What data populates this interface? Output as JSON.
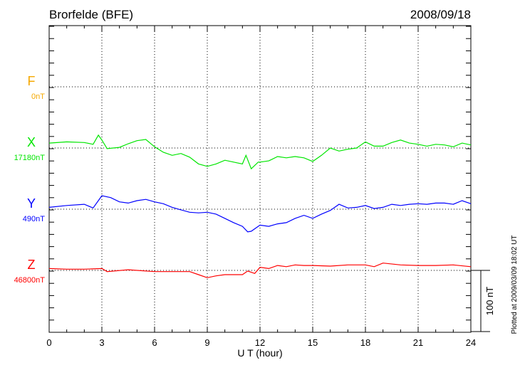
{
  "chart_data": {
    "type": "line",
    "title": "Brorfelde (BFE)",
    "date": "2008/09/18",
    "xlabel": "U T (hour)",
    "xlim": [
      0,
      24
    ],
    "xticks": [
      "0",
      "3",
      "6",
      "9",
      "12",
      "15",
      "18",
      "21",
      "24"
    ],
    "grid": true,
    "scale_bar_label": "100 nT",
    "scale_bar_nT": 100,
    "footnote": "Plotted at 2009/03/09 18:02 UT",
    "series": [
      {
        "name": "F",
        "baseline_label": "0nT",
        "color": "#f5a800",
        "x": [],
        "values": []
      },
      {
        "name": "X",
        "baseline_label": "17180nT",
        "color": "#00e600",
        "x": [
          0,
          1,
          2,
          2.5,
          2.8,
          3,
          3.3,
          4,
          4.5,
          5,
          5.5,
          6,
          6.5,
          7,
          7.5,
          8,
          8.5,
          9,
          9.5,
          10,
          10.5,
          11,
          11.2,
          11.5,
          11.9,
          12,
          12.5,
          13,
          13.5,
          14,
          14.5,
          15,
          15.5,
          16,
          16.5,
          17,
          17.5,
          18,
          18.5,
          19,
          19.5,
          20,
          20.5,
          21,
          21.5,
          22,
          22.5,
          23,
          23.5,
          24
        ],
        "values": [
          8,
          10,
          9,
          6,
          21,
          13,
          -1,
          1,
          7,
          12,
          14,
          2,
          -7,
          -12,
          -9,
          -15,
          -26,
          -30,
          -26,
          -20,
          -23,
          -26,
          -12,
          -34,
          -23,
          -23,
          -21,
          -14,
          -16,
          -14,
          -16,
          -22,
          -12,
          0,
          -5,
          -2,
          0,
          10,
          3,
          3,
          9,
          13,
          8,
          6,
          3,
          6,
          5,
          2,
          8,
          5
        ]
      },
      {
        "name": "Y",
        "baseline_label": "490nT",
        "color": "#0000ff",
        "x": [
          0,
          1,
          2,
          2.5,
          3,
          3.5,
          4,
          4.5,
          5,
          5.5,
          6,
          6.5,
          7,
          7.5,
          8,
          8.5,
          9,
          9.5,
          10,
          10.5,
          11,
          11.3,
          11.5,
          12,
          12.5,
          13,
          13.5,
          14,
          14.5,
          15,
          15.5,
          16,
          16.5,
          17,
          17.5,
          18,
          18.5,
          19,
          19.5,
          20,
          20.5,
          21,
          21.5,
          22,
          22.5,
          23,
          23.5,
          24
        ],
        "values": [
          3,
          6,
          8,
          2,
          22,
          19,
          12,
          10,
          14,
          16,
          12,
          9,
          3,
          -1,
          -5,
          -6,
          -5,
          -8,
          -15,
          -22,
          -28,
          -37,
          -36,
          -26,
          -28,
          -24,
          -22,
          -15,
          -10,
          -15,
          -8,
          -2,
          8,
          2,
          3,
          6,
          1,
          3,
          8,
          6,
          8,
          9,
          8,
          10,
          10,
          8,
          14,
          9
        ]
      },
      {
        "name": "Z",
        "baseline_label": "46800nT",
        "color": "#ff0000",
        "x": [
          0,
          1,
          2,
          3,
          3.3,
          4.5,
          6,
          8,
          8.5,
          9,
          9.5,
          10,
          11,
          11.3,
          11.7,
          12,
          12.5,
          13,
          13.5,
          14,
          14.5,
          15,
          16,
          17,
          18,
          18.5,
          19,
          20,
          21,
          22,
          23,
          24
        ],
        "values": [
          3,
          2,
          2,
          3,
          -2,
          1,
          -2,
          -2,
          -7,
          -12,
          -9,
          -7,
          -7,
          -1,
          -5,
          5,
          3,
          8,
          6,
          9,
          8,
          8,
          7,
          9,
          9,
          6,
          12,
          9,
          8,
          8,
          9,
          6
        ]
      }
    ]
  }
}
